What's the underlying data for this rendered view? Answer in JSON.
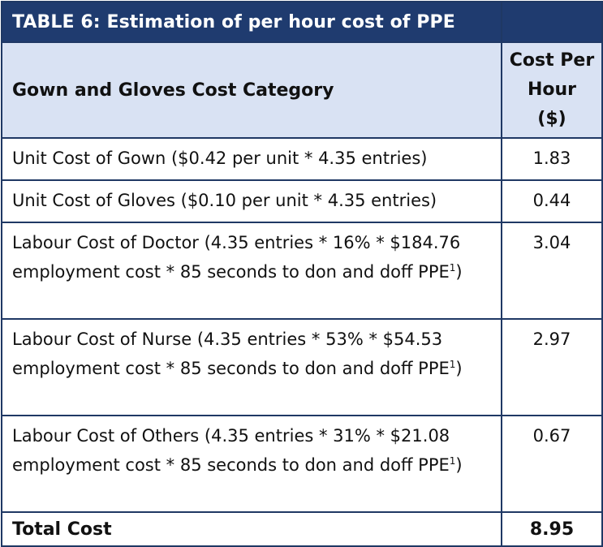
{
  "table": {
    "title": "TABLE 6: Estimation of per hour cost of PPE",
    "header": {
      "category": "Gown and Gloves Cost Category",
      "cost_line1": "Cost Per",
      "cost_line2": "Hour",
      "cost_line3": "($)"
    },
    "rows": [
      {
        "description": "Unit Cost of Gown ($0.42 per unit * 4.35 entries)",
        "footnote": "",
        "closing": "",
        "cost": "1.83"
      },
      {
        "description": "Unit Cost of Gloves ($0.10 per unit * 4.35 entries)",
        "footnote": "",
        "closing": "",
        "cost": "0.44"
      },
      {
        "description": "Labour Cost of Doctor (4.35 entries * 16% * $184.76 employment cost * 85 seconds to don and doff PPE",
        "footnote": "1",
        "closing": ")",
        "cost": "3.04"
      },
      {
        "description": "Labour Cost of Nurse (4.35 entries * 53% * $54.53 employment cost * 85 seconds to don and doff PPE",
        "footnote": "1",
        "closing": ")",
        "cost": "2.97"
      },
      {
        "description": "Labour Cost of Others (4.35 entries * 31% * $21.08 employment cost * 85 seconds to don and doff PPE",
        "footnote": "1",
        "closing": ")",
        "cost": "0.67"
      }
    ],
    "total": {
      "label": "Total Cost",
      "cost": "8.95"
    }
  },
  "colors": {
    "title_background": "#1f3b6f",
    "header_background": "#d9e2f3",
    "border": "#1f3864"
  }
}
